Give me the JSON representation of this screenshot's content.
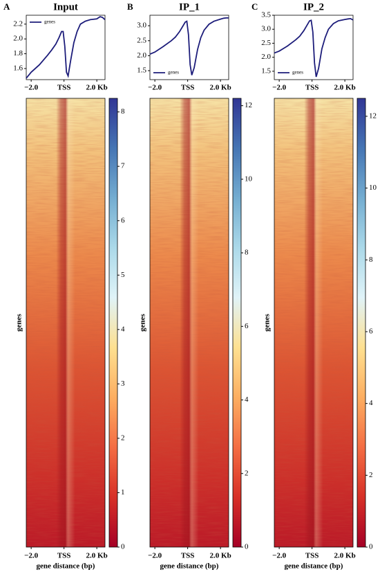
{
  "chart_data": [
    {
      "type": "line",
      "panel_label": "A",
      "title": "Input",
      "x": [
        -2300,
        -2000,
        -1500,
        -1000,
        -750,
        -500,
        -300,
        -150,
        -50,
        50,
        150,
        250,
        400,
        600,
        800,
        1000,
        1300,
        1600,
        2000,
        2200,
        2350,
        2500
      ],
      "series": [
        {
          "name": "genes",
          "color": "#1c1c7a",
          "values": [
            1.47,
            1.55,
            1.65,
            1.78,
            1.85,
            1.93,
            2.02,
            2.1,
            2.1,
            1.9,
            1.55,
            1.5,
            1.7,
            1.95,
            2.1,
            2.2,
            2.24,
            2.26,
            2.27,
            2.3,
            2.29,
            2.26
          ]
        }
      ],
      "xlim": [
        -2300,
        2500
      ],
      "xticks": [
        {
          "value": -2000,
          "label": "−2.0"
        },
        {
          "value": 0,
          "label": "TSS"
        },
        {
          "value": 2000,
          "label": "2.0 Kb"
        }
      ],
      "ylim": [
        1.45,
        2.32
      ],
      "yticks": [
        1.6,
        1.8,
        {
          "value": 2,
          "label": "2.0"
        },
        2.2
      ],
      "legend": "upper left"
    },
    {
      "type": "line",
      "panel_label": "B",
      "title": "IP_1",
      "x": [
        -2300,
        -2000,
        -1500,
        -1000,
        -750,
        -500,
        -300,
        -150,
        -50,
        50,
        150,
        250,
        400,
        600,
        800,
        1000,
        1300,
        1600,
        2000,
        2200,
        2350,
        2500
      ],
      "series": [
        {
          "name": "genes",
          "color": "#1c1c7a",
          "values": [
            2.05,
            2.12,
            2.3,
            2.5,
            2.62,
            2.8,
            2.98,
            3.12,
            3.15,
            2.7,
            1.7,
            1.35,
            1.6,
            2.2,
            2.6,
            2.85,
            3.05,
            3.15,
            3.22,
            3.25,
            3.26,
            3.26
          ]
        }
      ],
      "xlim": [
        -2300,
        2500
      ],
      "xticks": [
        {
          "value": -2000,
          "label": "−2.0"
        },
        {
          "value": 0,
          "label": "TSS"
        },
        {
          "value": 2000,
          "label": "2.0 Kb"
        }
      ],
      "ylim": [
        1.2,
        3.35
      ],
      "yticks": [
        1.5,
        {
          "value": 2,
          "label": "2.0"
        },
        2.5,
        {
          "value": 3,
          "label": "3.0"
        }
      ],
      "legend": "lower left"
    },
    {
      "type": "line",
      "panel_label": "C",
      "title": "IP_2",
      "x": [
        -2300,
        -2000,
        -1500,
        -1000,
        -750,
        -500,
        -300,
        -150,
        -50,
        50,
        150,
        250,
        400,
        600,
        800,
        1000,
        1300,
        1600,
        2000,
        2200,
        2350,
        2500
      ],
      "series": [
        {
          "name": "genes",
          "color": "#1c1c7a",
          "values": [
            2.15,
            2.22,
            2.4,
            2.62,
            2.75,
            2.95,
            3.15,
            3.3,
            3.32,
            2.9,
            1.8,
            1.3,
            1.6,
            2.3,
            2.7,
            3.0,
            3.2,
            3.3,
            3.35,
            3.37,
            3.38,
            3.33
          ]
        }
      ],
      "xlim": [
        -2300,
        2500
      ],
      "xticks": [
        {
          "value": -2000,
          "label": "−2.0"
        },
        {
          "value": 0,
          "label": "TSS"
        },
        {
          "value": 2000,
          "label": "2.0 Kb"
        }
      ],
      "ylim": [
        1.2,
        3.5
      ],
      "yticks": [
        1.5,
        {
          "value": 2,
          "label": "2.0"
        },
        2.5,
        {
          "value": 3,
          "label": "3.0"
        },
        3.5
      ],
      "legend": "lower left"
    },
    {
      "type": "heatmap",
      "ylabel": "genes",
      "xlabel": "gene distance (bp)",
      "xlim": [
        -2300,
        2500
      ],
      "xticks": [
        {
          "value": -2000,
          "label": "−2.0"
        },
        {
          "value": 0,
          "label": "TSS"
        },
        {
          "value": 2000,
          "label": "2.0 Kb"
        }
      ],
      "clim": [
        0,
        8.25
      ],
      "cticks": [
        0,
        1,
        2,
        3,
        4,
        5,
        6,
        7,
        8
      ],
      "colorbar_colors": [
        "#a50026",
        "#d73027",
        "#f46d43",
        "#fdae61",
        "#fee090",
        "#e0f3f8",
        "#abd9e9",
        "#74add1",
        "#4575b4",
        "#313695"
      ]
    },
    {
      "type": "heatmap",
      "ylabel": "genes",
      "xlabel": "gene distance (bp)",
      "xlim": [
        -2300,
        2500
      ],
      "xticks": [
        {
          "value": -2000,
          "label": "−2.0"
        },
        {
          "value": 0,
          "label": "TSS"
        },
        {
          "value": 2000,
          "label": "2.0 Kb"
        }
      ],
      "clim": [
        0,
        12.2
      ],
      "cticks": [
        0,
        2,
        4,
        6,
        8,
        10,
        12
      ],
      "colorbar_colors": [
        "#a50026",
        "#d73027",
        "#f46d43",
        "#fdae61",
        "#fee090",
        "#e0f3f8",
        "#abd9e9",
        "#74add1",
        "#4575b4",
        "#313695"
      ]
    },
    {
      "type": "heatmap",
      "ylabel": "genes",
      "xlabel": "gene distance (bp)",
      "xlim": [
        -2300,
        2500
      ],
      "xticks": [
        {
          "value": -2000,
          "label": "−2.0"
        },
        {
          "value": 0,
          "label": "TSS"
        },
        {
          "value": 2000,
          "label": "2.0 Kb"
        }
      ],
      "clim": [
        0,
        12.5
      ],
      "cticks": [
        0,
        2,
        4,
        6,
        8,
        10,
        12
      ],
      "colorbar_colors": [
        "#a50026",
        "#d73027",
        "#f46d43",
        "#fdae61",
        "#fee090",
        "#e0f3f8",
        "#abd9e9",
        "#74add1",
        "#4575b4",
        "#313695"
      ]
    }
  ]
}
